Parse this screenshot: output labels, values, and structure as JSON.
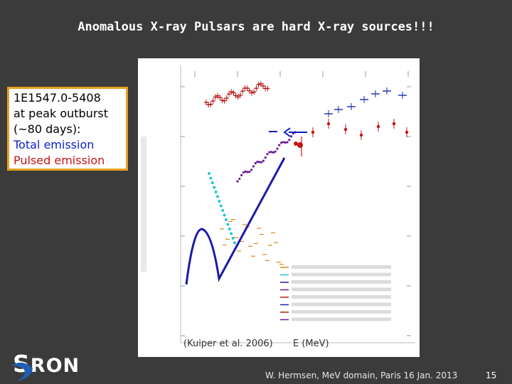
{
  "slide": {
    "title": "Anomalous X-ray Pulsars are hard X-ray sources!!!",
    "callout": {
      "lines": [
        {
          "text": "1E1547.0-5408",
          "color": "#000000"
        },
        {
          "text": "at peak outburst",
          "color": "#000000"
        },
        {
          "text": "(~80 days):",
          "color": "#000000"
        },
        {
          "text": "Total emission",
          "color": "#0a1ec8"
        },
        {
          "text": "Pulsed emission",
          "color": "#c81414"
        }
      ],
      "border_color": "#e6a020"
    },
    "plot": {
      "credit": "(Kuiper et al. 2006)",
      "xlabel": "E (MeV)",
      "arrow_color": "#0a1ec8",
      "curve_color": "#1a1aa8"
    },
    "logo": {
      "s": "S",
      "rest": "RON"
    },
    "footer": "W. Hermsen, MeV domain, Paris 16 Jan. 2013",
    "page_number": "15"
  }
}
